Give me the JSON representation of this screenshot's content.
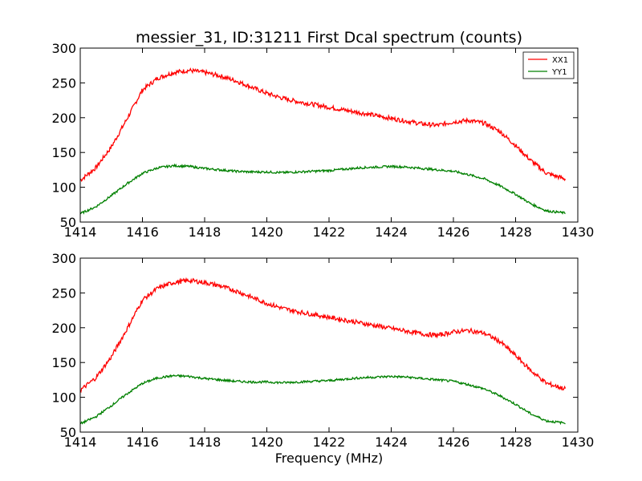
{
  "chart_data": [
    {
      "type": "line",
      "title": "messier_31, ID:31211 First Dcal spectrum (counts)",
      "xlabel": "",
      "ylabel": "",
      "xlim": [
        1414,
        1430
      ],
      "ylim": [
        50,
        300
      ],
      "xticks": [
        1414,
        1416,
        1418,
        1420,
        1422,
        1424,
        1426,
        1428,
        1430
      ],
      "yticks": [
        50,
        100,
        150,
        200,
        250,
        300
      ],
      "legend_position": "top-right",
      "grid": false,
      "series": [
        {
          "name": "XX1",
          "color": "#ff0000",
          "x": [
            1414.0,
            1414.5,
            1415.0,
            1415.5,
            1416.0,
            1416.5,
            1417.0,
            1417.5,
            1418.0,
            1418.5,
            1419.0,
            1419.5,
            1420.0,
            1420.5,
            1421.0,
            1421.5,
            1422.0,
            1422.5,
            1423.0,
            1423.5,
            1424.0,
            1424.5,
            1425.0,
            1425.5,
            1426.0,
            1426.5,
            1427.0,
            1427.5,
            1428.0,
            1428.5,
            1429.0,
            1429.6
          ],
          "values": [
            110,
            128,
            158,
            198,
            240,
            257,
            265,
            268,
            265,
            260,
            253,
            244,
            235,
            228,
            223,
            219,
            215,
            211,
            207,
            203,
            199,
            195,
            191,
            189,
            194,
            196,
            192,
            180,
            160,
            138,
            120,
            112
          ]
        },
        {
          "name": "YY1",
          "color": "#008000",
          "x": [
            1414.0,
            1414.5,
            1415.0,
            1415.5,
            1416.0,
            1416.5,
            1417.0,
            1417.5,
            1418.0,
            1418.5,
            1419.0,
            1419.5,
            1420.0,
            1420.5,
            1421.0,
            1421.5,
            1422.0,
            1422.5,
            1423.0,
            1423.5,
            1424.0,
            1424.5,
            1425.0,
            1425.5,
            1426.0,
            1426.5,
            1427.0,
            1427.5,
            1428.0,
            1428.5,
            1429.0,
            1429.6
          ],
          "values": [
            62,
            72,
            88,
            105,
            120,
            128,
            131,
            130,
            127,
            125,
            123,
            122,
            122,
            121,
            122,
            123,
            124,
            126,
            128,
            129,
            130,
            129,
            127,
            125,
            123,
            118,
            112,
            102,
            90,
            76,
            66,
            63
          ]
        }
      ]
    },
    {
      "type": "line",
      "title": "",
      "xlabel": "Frequency (MHz)",
      "ylabel": "",
      "xlim": [
        1414,
        1430
      ],
      "ylim": [
        50,
        300
      ],
      "xticks": [
        1414,
        1416,
        1418,
        1420,
        1422,
        1424,
        1426,
        1428,
        1430
      ],
      "yticks": [
        50,
        100,
        150,
        200,
        250,
        300
      ],
      "legend_position": "",
      "grid": false,
      "series": [
        {
          "color": "#ff0000",
          "x": [
            1414.0,
            1414.5,
            1415.0,
            1415.5,
            1416.0,
            1416.5,
            1417.0,
            1417.5,
            1418.0,
            1418.5,
            1419.0,
            1419.5,
            1420.0,
            1420.5,
            1421.0,
            1421.5,
            1422.0,
            1422.5,
            1423.0,
            1423.5,
            1424.0,
            1424.5,
            1425.0,
            1425.5,
            1426.0,
            1426.5,
            1427.0,
            1427.5,
            1428.0,
            1428.5,
            1429.0,
            1429.6
          ],
          "values": [
            110,
            128,
            158,
            198,
            240,
            257,
            265,
            268,
            265,
            260,
            253,
            244,
            235,
            228,
            223,
            219,
            215,
            211,
            207,
            203,
            199,
            195,
            191,
            189,
            194,
            196,
            192,
            180,
            160,
            138,
            120,
            112
          ]
        },
        {
          "color": "#008000",
          "x": [
            1414.0,
            1414.5,
            1415.0,
            1415.5,
            1416.0,
            1416.5,
            1417.0,
            1417.5,
            1418.0,
            1418.5,
            1419.0,
            1419.5,
            1420.0,
            1420.5,
            1421.0,
            1421.5,
            1422.0,
            1422.5,
            1423.0,
            1423.5,
            1424.0,
            1424.5,
            1425.0,
            1425.5,
            1426.0,
            1426.5,
            1427.0,
            1427.5,
            1428.0,
            1428.5,
            1429.0,
            1429.6
          ],
          "values": [
            62,
            72,
            88,
            105,
            120,
            128,
            131,
            130,
            127,
            125,
            123,
            122,
            122,
            121,
            122,
            123,
            124,
            126,
            128,
            129,
            130,
            129,
            127,
            125,
            123,
            118,
            112,
            102,
            90,
            76,
            66,
            63
          ]
        }
      ]
    }
  ]
}
